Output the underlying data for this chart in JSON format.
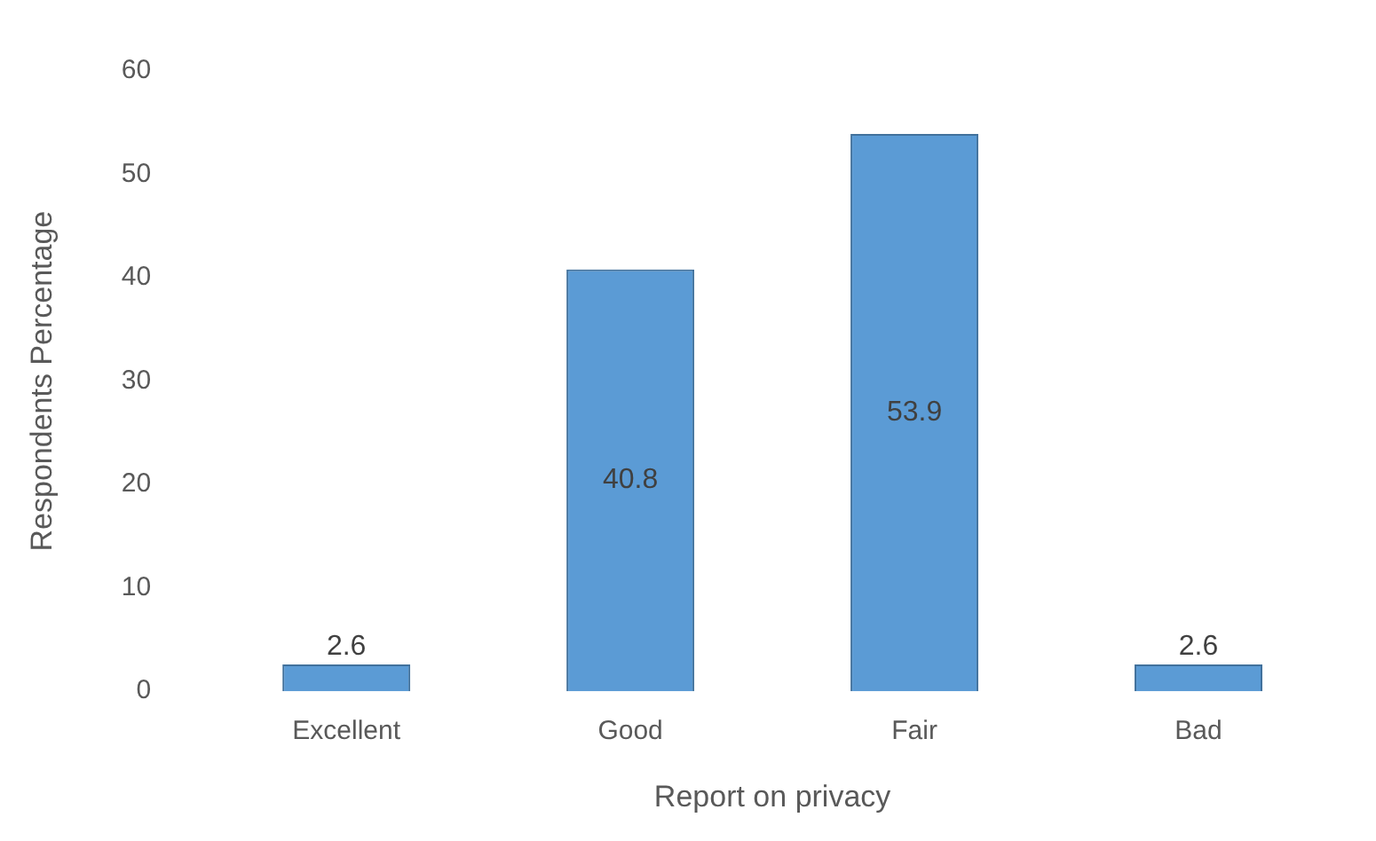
{
  "chart_data": {
    "type": "bar",
    "xlabel": "Report on privacy",
    "ylabel": "Respondents Percentage",
    "categories": [
      "Excellent",
      "Good",
      "Fair",
      "Bad"
    ],
    "values": [
      2.6,
      40.8,
      53.9,
      2.6
    ],
    "color": "#5b9bd5",
    "ylim": [
      0,
      60
    ],
    "yticks": [
      0,
      10,
      20,
      30,
      40,
      50,
      60
    ],
    "grid": false,
    "legend": false,
    "data_labels": true
  }
}
